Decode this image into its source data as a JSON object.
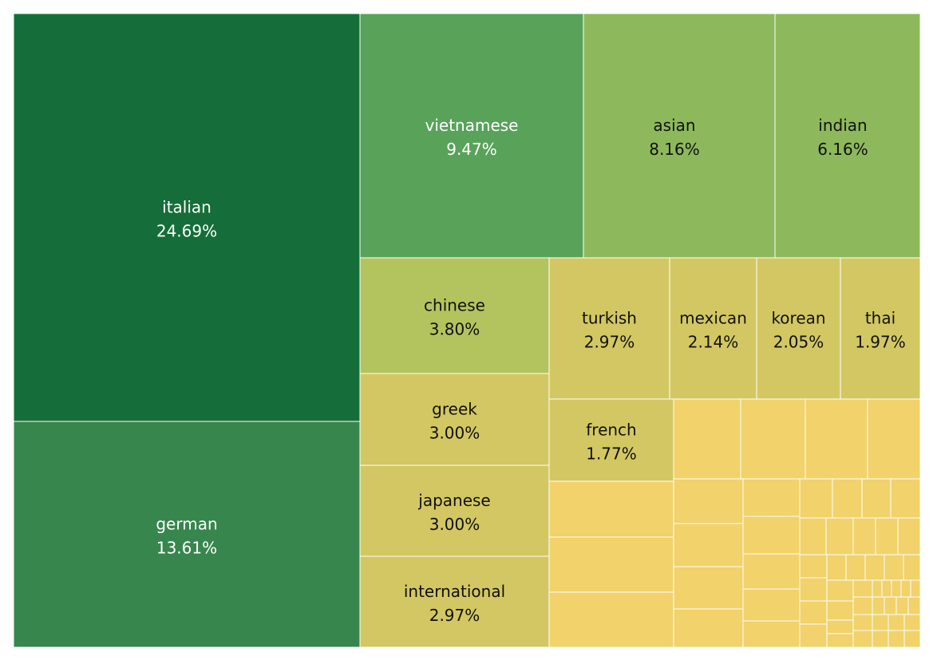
{
  "chart_data": {
    "type": "treemap",
    "title": "",
    "value_unit": "%",
    "colors": {
      "darkest": "#156E39",
      "dark": "#37864D",
      "mid": "#58A359",
      "light": "#8DB95C",
      "lighter": "#B3C45F",
      "pale": "#D3C763",
      "palest": "#F1D26B"
    },
    "labeled_items": [
      {
        "name": "italian",
        "value": "24.69%"
      },
      {
        "name": "german",
        "value": "13.61%"
      },
      {
        "name": "vietnamese",
        "value": "9.47%"
      },
      {
        "name": "asian",
        "value": "8.16%"
      },
      {
        "name": "indian",
        "value": "6.16%"
      },
      {
        "name": "chinese",
        "value": "3.80%"
      },
      {
        "name": "greek",
        "value": "3.00%"
      },
      {
        "name": "japanese",
        "value": "3.00%"
      },
      {
        "name": "international",
        "value": "2.97%"
      },
      {
        "name": "turkish",
        "value": "2.97%"
      },
      {
        "name": "mexican",
        "value": "2.14%"
      },
      {
        "name": "korean",
        "value": "2.05%"
      },
      {
        "name": "thai",
        "value": "1.97%"
      },
      {
        "name": "french",
        "value": "1.77%"
      }
    ],
    "unlabeled_small_cells": 56
  }
}
